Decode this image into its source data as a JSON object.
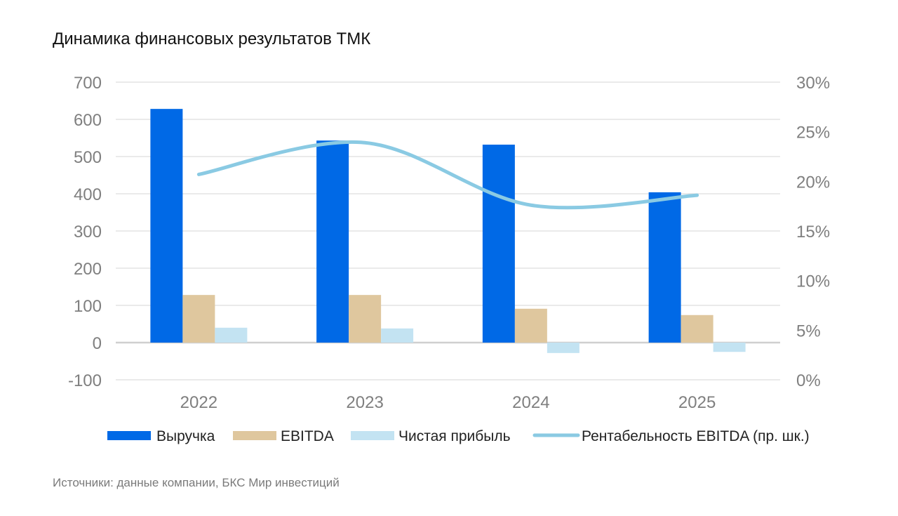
{
  "title": "Динамика финансовых результатов ТМК",
  "source": "Источники: данные компании, БКС Мир инвестиций",
  "chart_data": {
    "type": "bar",
    "title": "Динамика финансовых результатов ТМК",
    "categories": [
      "2022",
      "2023",
      "2024",
      "2025"
    ],
    "series": [
      {
        "name": "Выручка",
        "type": "bar",
        "axis": "left",
        "color": "#0069E6",
        "values": [
          628,
          543,
          532,
          404
        ]
      },
      {
        "name": "EBITDA",
        "type": "bar",
        "axis": "left",
        "color": "#DFC79E",
        "values": [
          128,
          128,
          91,
          74
        ]
      },
      {
        "name": "Чистая прибыль",
        "type": "bar",
        "axis": "left",
        "color": "#C3E3F2",
        "values": [
          40,
          38,
          -28,
          -25
        ]
      },
      {
        "name": "Рентабельность EBITDA (пр. шк.)",
        "type": "line",
        "axis": "right",
        "color": "#8ACAE3",
        "values": [
          20.7,
          23.9,
          17.6,
          18.6
        ]
      }
    ],
    "ylim": [
      -100,
      700
    ],
    "yticks": [
      "700",
      "600",
      "500",
      "400",
      "300",
      "200",
      "100",
      "0",
      "-100"
    ],
    "y2lim": [
      0,
      30
    ],
    "y2ticks": [
      "30%",
      "25%",
      "20%",
      "15%",
      "10%",
      "5%",
      "0%"
    ],
    "xlabel": "",
    "ylabel": "",
    "grid": true,
    "legend_position": "bottom"
  }
}
